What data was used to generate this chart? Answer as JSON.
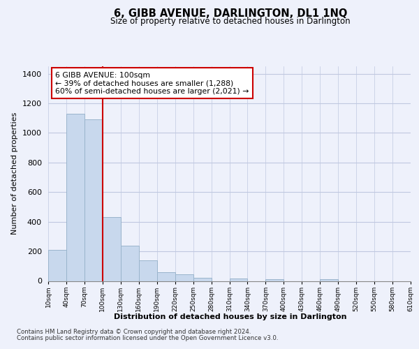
{
  "title": "6, GIBB AVENUE, DARLINGTON, DL1 1NQ",
  "subtitle": "Size of property relative to detached houses in Darlington",
  "xlabel": "Distribution of detached houses by size in Darlington",
  "ylabel": "Number of detached properties",
  "bar_color": "#c8d8ed",
  "bar_edge_color": "#9ab4cc",
  "vline_x": 100,
  "vline_color": "#cc0000",
  "ann_line1": "6 GIBB AVENUE: 100sqm",
  "ann_line2": "← 39% of detached houses are smaller (1,288)",
  "ann_line3": "60% of semi-detached houses are larger (2,021) →",
  "footer1": "Contains HM Land Registry data © Crown copyright and database right 2024.",
  "footer2": "Contains public sector information licensed under the Open Government Licence v3.0.",
  "bins": [
    10,
    40,
    70,
    100,
    130,
    160,
    190,
    220,
    250,
    280,
    310,
    340,
    370,
    400,
    430,
    460,
    490,
    520,
    550,
    580,
    610
  ],
  "counts": [
    210,
    1130,
    1090,
    430,
    240,
    140,
    60,
    45,
    22,
    0,
    15,
    0,
    10,
    0,
    0,
    10,
    0,
    0,
    0,
    0
  ],
  "ylim": [
    0,
    1450
  ],
  "yticks": [
    0,
    200,
    400,
    600,
    800,
    1000,
    1200,
    1400
  ],
  "background_color": "#eef1fb",
  "plot_background": "#eef1fb",
  "grid_color": "#c0c8e0"
}
